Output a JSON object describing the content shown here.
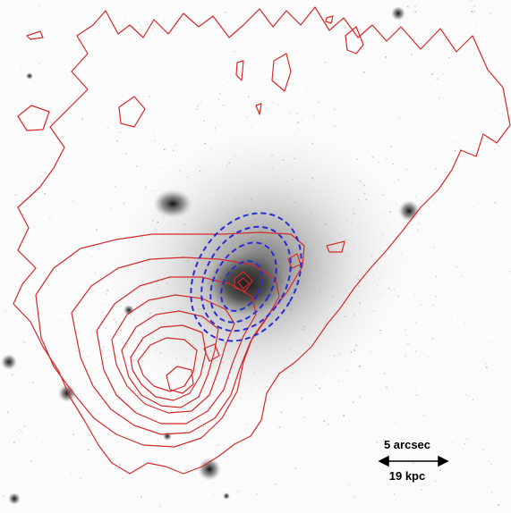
{
  "scale_bar": {
    "angular_label": "5 arcsec",
    "physical_label": "19 kpc"
  },
  "colors": {
    "background": "#fbfbfb",
    "xray_contours": "#d42a2a",
    "radio_contours": "#2a2ad6",
    "optical_emission": "#808080"
  }
}
